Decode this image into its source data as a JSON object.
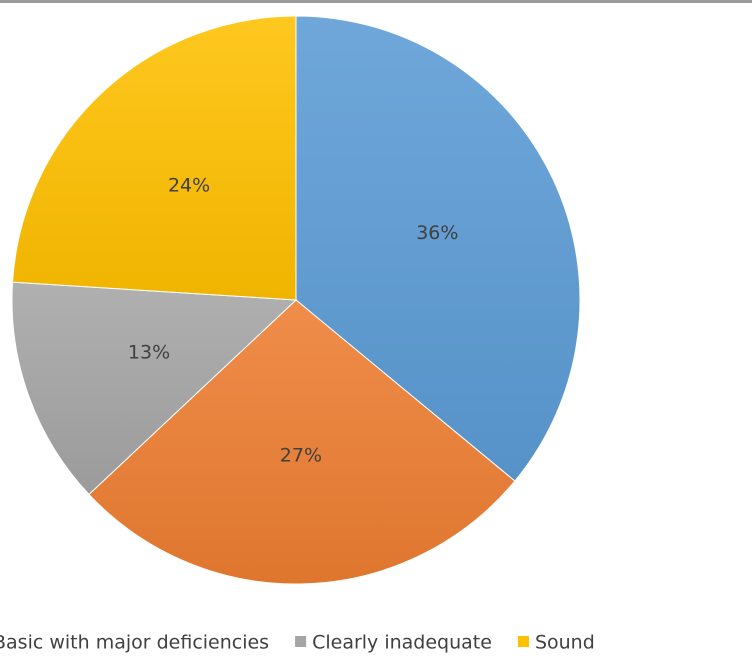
{
  "chart_data": {
    "type": "pie",
    "slices": [
      {
        "label": "",
        "value": 36,
        "display": "36%",
        "color": "#5b9bd5"
      },
      {
        "label": "Basic with major deficiencies",
        "value": 27,
        "display": "27%",
        "color": "#ed7d31"
      },
      {
        "label": "Clearly inadequate",
        "value": 13,
        "display": "13%",
        "color": "#a5a5a5"
      },
      {
        "label": "Sound",
        "value": 24,
        "display": "24%",
        "color": "#ffc000"
      }
    ],
    "legend": {
      "position": "bottom",
      "entries": [
        {
          "label": "Basic with major deficiencies",
          "color": "#ed7d31"
        },
        {
          "label": "Clearly inadequate",
          "color": "#a5a5a5"
        },
        {
          "label": "Sound",
          "color": "#ffc000"
        }
      ]
    }
  }
}
